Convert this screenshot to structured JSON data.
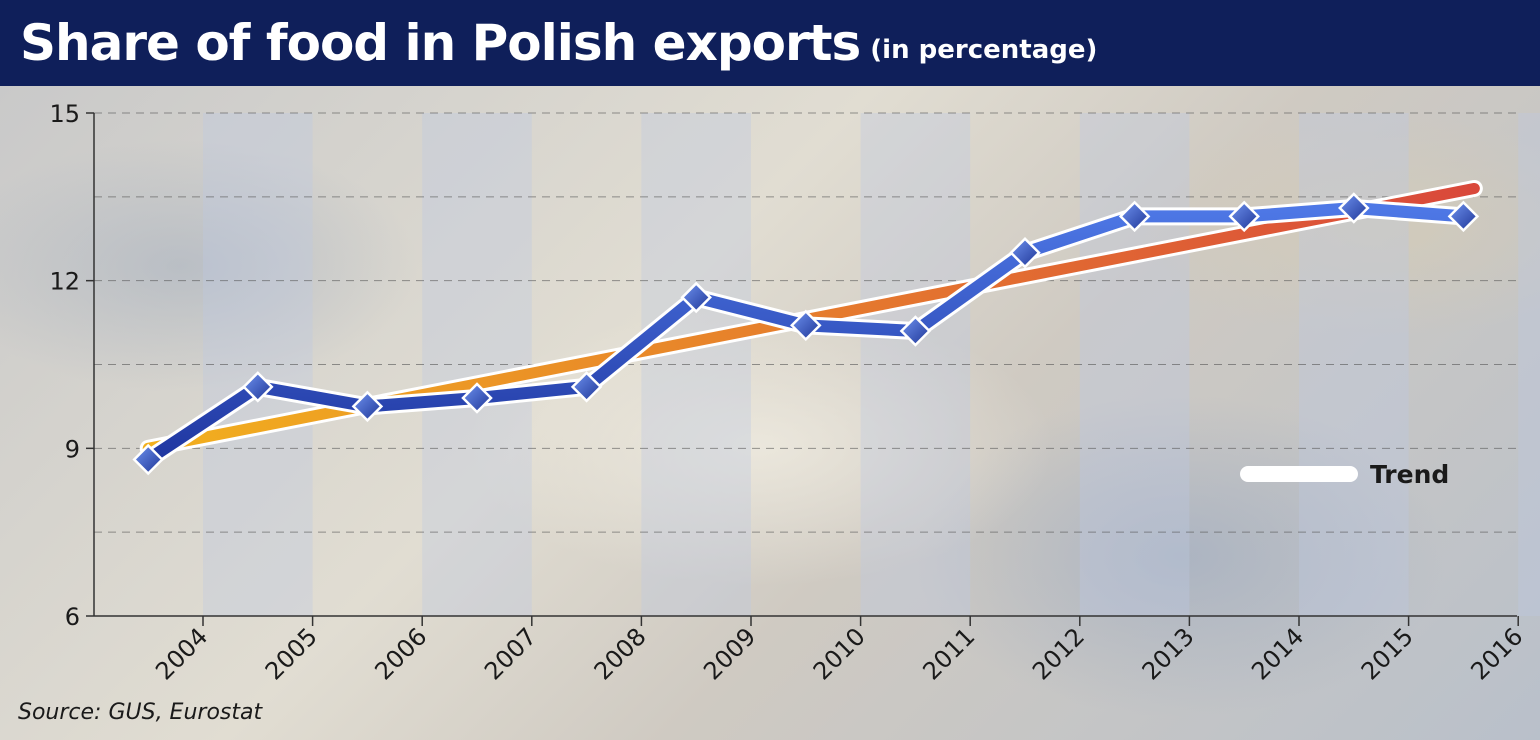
{
  "header": {
    "title": "Share of food in Polish exports",
    "subtitle": "(in percentage)"
  },
  "source": "Source: GUS, Eurostat",
  "legend": {
    "trend_label": "Trend"
  },
  "colors": {
    "header_bg": "#0f1f5a",
    "series_line": "#2a47b8",
    "marker": "#3a5fd0",
    "trend_start": "#f2b01e",
    "trend_end": "#d9483b"
  },
  "chart_data": {
    "type": "line",
    "x_ticks": [
      "2004",
      "2005",
      "2006",
      "2007",
      "2008",
      "2009",
      "2010",
      "2011",
      "2012",
      "2013",
      "2014",
      "2015",
      "2016"
    ],
    "y_ticks": [
      15,
      12,
      9,
      6
    ],
    "ylim": [
      6,
      15
    ],
    "grid": true,
    "legend_position": "right-middle",
    "series": [
      {
        "x": [
          2003.5,
          2004.5,
          2005.5,
          2006.5,
          2007.5,
          2008.5,
          2009.5,
          2010.5,
          2011.5,
          2012.5,
          2013.5,
          2014.5,
          2015.5
        ],
        "values": [
          8.8,
          10.1,
          9.75,
          9.9,
          10.1,
          11.7,
          11.2,
          11.1,
          12.5,
          13.15,
          13.15,
          13.3,
          13.15
        ]
      },
      {
        "name": "Trend",
        "x": [
          2003.5,
          2015.6
        ],
        "values": [
          9.0,
          13.65
        ]
      }
    ]
  }
}
